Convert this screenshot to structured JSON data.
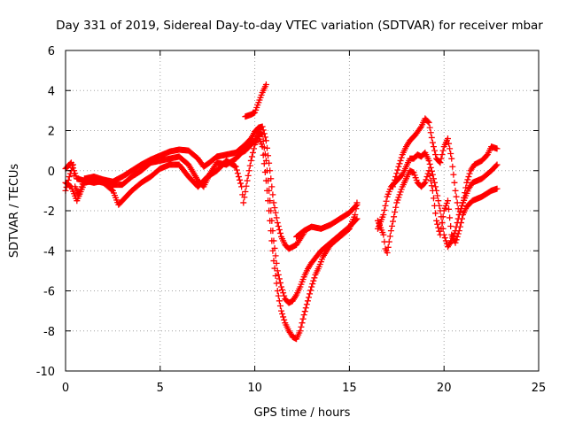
{
  "chart_data": {
    "type": "scatter",
    "title": "Day 331 of 2019, Sidereal Day-to-day VTEC variation (SDTVAR) for receiver mbar",
    "xlabel": "GPS time / hours",
    "ylabel": "SDTVAR / TECUs",
    "xlim": [
      0,
      25
    ],
    "ylim": [
      -10,
      6
    ],
    "xticks": [
      0,
      5,
      10,
      15,
      20,
      25
    ],
    "yticks": [
      -10,
      -8,
      -6,
      -4,
      -2,
      0,
      2,
      4,
      6
    ],
    "grid": true,
    "legend": "none",
    "marker": "+",
    "series_color": "#ff0000",
    "series": [
      {
        "points": [
          [
            0,
            -1.0
          ],
          [
            0.2,
            -0.3
          ],
          [
            0.4,
            0.3
          ],
          [
            0.5,
            -0.8
          ],
          [
            0.7,
            -1.2
          ],
          [
            1.0,
            -0.4
          ],
          [
            1.5,
            -0.3
          ],
          [
            2.0,
            -0.45
          ],
          [
            2.5,
            -0.55
          ],
          [
            3.0,
            -0.3
          ],
          [
            3.5,
            0.0
          ],
          [
            4.0,
            0.3
          ],
          [
            4.5,
            0.55
          ],
          [
            5.0,
            0.75
          ],
          [
            5.5,
            0.95
          ],
          [
            6.0,
            1.05
          ],
          [
            6.5,
            1.0
          ],
          [
            7.0,
            0.6
          ],
          [
            7.3,
            0.2
          ],
          [
            7.6,
            0.4
          ],
          [
            8.0,
            0.7
          ],
          [
            8.5,
            0.8
          ],
          [
            9.0,
            0.9
          ],
          [
            9.5,
            1.3
          ],
          [
            9.8,
            1.6
          ],
          [
            10.0,
            1.95
          ],
          [
            10.2,
            2.15
          ],
          [
            10.4,
            2.2
          ],
          [
            10.6,
            1.5
          ],
          [
            10.8,
            0.0
          ],
          [
            11.0,
            -1.6
          ],
          [
            11.2,
            -2.6
          ],
          [
            11.4,
            -3.3
          ],
          [
            11.6,
            -3.7
          ],
          [
            11.8,
            -3.9
          ],
          [
            12.0,
            -3.8
          ],
          [
            12.2,
            -3.7
          ],
          [
            12.4,
            -3.4
          ],
          [
            12.6,
            -3.1
          ]
        ]
      },
      {
        "points": [
          [
            0,
            0.1
          ],
          [
            0.3,
            0.4
          ],
          [
            0.6,
            -0.4
          ],
          [
            1.0,
            -0.5
          ],
          [
            1.5,
            -0.6
          ],
          [
            2.0,
            -0.5
          ],
          [
            2.5,
            -0.7
          ],
          [
            3.0,
            -0.7
          ],
          [
            3.5,
            -0.3
          ],
          [
            4.0,
            0.0
          ],
          [
            4.5,
            0.4
          ],
          [
            5.0,
            0.5
          ],
          [
            5.5,
            0.6
          ],
          [
            6.0,
            0.7
          ],
          [
            6.5,
            0.3
          ],
          [
            7.0,
            -0.5
          ],
          [
            7.3,
            -0.8
          ],
          [
            7.6,
            -0.2
          ],
          [
            8.0,
            0.4
          ],
          [
            8.5,
            0.3
          ],
          [
            9.0,
            0.6
          ],
          [
            9.3,
            0.9
          ],
          [
            9.5,
            1.0
          ],
          [
            10.0,
            1.5
          ],
          [
            10.2,
            1.9
          ],
          [
            10.4,
            1.8
          ],
          [
            10.6,
            0.5
          ],
          [
            10.8,
            -1.5
          ],
          [
            11.0,
            -3.5
          ],
          [
            11.2,
            -5.0
          ],
          [
            11.4,
            -5.8
          ],
          [
            11.6,
            -6.4
          ],
          [
            11.8,
            -6.6
          ],
          [
            12.0,
            -6.5
          ],
          [
            12.2,
            -6.2
          ],
          [
            12.4,
            -5.8
          ],
          [
            12.6,
            -5.3
          ],
          [
            12.8,
            -4.9
          ],
          [
            13.0,
            -4.6
          ],
          [
            13.5,
            -4.0
          ],
          [
            14.0,
            -3.6
          ],
          [
            14.5,
            -3.2
          ],
          [
            15.0,
            -2.8
          ],
          [
            15.4,
            -2.4
          ]
        ]
      },
      {
        "points": [
          [
            0,
            -0.6
          ],
          [
            0.3,
            -0.8
          ],
          [
            0.6,
            -1.5
          ],
          [
            1.0,
            -0.6
          ],
          [
            1.5,
            -0.5
          ],
          [
            2.0,
            -0.6
          ],
          [
            2.5,
            -1.0
          ],
          [
            2.8,
            -1.7
          ],
          [
            3.2,
            -1.3
          ],
          [
            3.5,
            -1.0
          ],
          [
            4.0,
            -0.6
          ],
          [
            4.5,
            -0.3
          ],
          [
            5.0,
            0.1
          ],
          [
            5.5,
            0.3
          ],
          [
            6.0,
            0.3
          ],
          [
            6.5,
            -0.3
          ],
          [
            7.0,
            -0.8
          ],
          [
            7.5,
            -0.3
          ],
          [
            8.0,
            0.0
          ],
          [
            8.5,
            0.5
          ],
          [
            9.0,
            0.2
          ],
          [
            9.3,
            -0.8
          ],
          [
            9.4,
            -1.6
          ],
          [
            9.6,
            -0.5
          ],
          [
            9.8,
            0.5
          ],
          [
            10.0,
            1.3
          ],
          [
            10.2,
            1.7
          ],
          [
            10.4,
            1.2
          ],
          [
            10.6,
            -0.5
          ],
          [
            10.8,
            -2.5
          ],
          [
            11.0,
            -4.5
          ],
          [
            11.2,
            -6.0
          ],
          [
            11.4,
            -7.0
          ],
          [
            11.6,
            -7.6
          ],
          [
            11.8,
            -8.0
          ],
          [
            12.0,
            -8.3
          ],
          [
            12.2,
            -8.4
          ],
          [
            12.4,
            -8.0
          ],
          [
            12.6,
            -7.2
          ],
          [
            12.8,
            -6.5
          ],
          [
            13.0,
            -5.8
          ],
          [
            13.2,
            -5.2
          ],
          [
            13.4,
            -4.8
          ],
          [
            13.6,
            -4.3
          ],
          [
            14.0,
            -3.7
          ],
          [
            14.5,
            -3.3
          ],
          [
            15.0,
            -2.9
          ],
          [
            15.3,
            -2.2
          ],
          [
            15.4,
            -1.6
          ]
        ]
      },
      {
        "points": [
          [
            9.5,
            2.7
          ],
          [
            9.8,
            2.8
          ],
          [
            10.0,
            2.9
          ],
          [
            10.2,
            3.4
          ],
          [
            10.4,
            3.9
          ],
          [
            10.5,
            4.1
          ],
          [
            10.6,
            4.3
          ]
        ]
      },
      {
        "points": [
          [
            12.2,
            -3.3
          ],
          [
            12.6,
            -3.0
          ],
          [
            13.0,
            -2.8
          ],
          [
            13.5,
            -2.9
          ],
          [
            14.0,
            -2.7
          ],
          [
            14.5,
            -2.4
          ],
          [
            15.0,
            -2.1
          ],
          [
            15.4,
            -1.7
          ]
        ]
      },
      {
        "points": [
          [
            16.5,
            -2.5
          ],
          [
            16.8,
            -3.2
          ],
          [
            16.9,
            -3.9
          ],
          [
            17.0,
            -4.1
          ],
          [
            17.2,
            -3.0
          ],
          [
            17.5,
            -1.6
          ],
          [
            17.8,
            -0.8
          ],
          [
            18.0,
            -0.4
          ],
          [
            18.2,
            0.0
          ],
          [
            18.4,
            -0.1
          ],
          [
            18.6,
            -0.6
          ],
          [
            18.8,
            -0.8
          ],
          [
            19.0,
            -0.6
          ],
          [
            19.2,
            0.0
          ],
          [
            19.4,
            -1.0
          ],
          [
            19.6,
            -2.5
          ],
          [
            19.8,
            -3.2
          ],
          [
            20.0,
            -2.0
          ],
          [
            20.2,
            -1.5
          ],
          [
            20.4,
            -3.2
          ],
          [
            20.6,
            -3.6
          ],
          [
            20.8,
            -3.0
          ],
          [
            21.0,
            -2.2
          ],
          [
            21.2,
            -1.8
          ],
          [
            21.5,
            -1.5
          ],
          [
            22.0,
            -1.3
          ],
          [
            22.5,
            -1.0
          ],
          [
            22.8,
            -0.9
          ]
        ]
      },
      {
        "points": [
          [
            16.5,
            -2.9
          ],
          [
            16.8,
            -2.2
          ],
          [
            17.0,
            -1.3
          ],
          [
            17.2,
            -0.8
          ],
          [
            17.5,
            -0.5
          ],
          [
            17.8,
            -0.2
          ],
          [
            18.0,
            0.2
          ],
          [
            18.2,
            0.6
          ],
          [
            18.4,
            0.6
          ],
          [
            18.6,
            0.8
          ],
          [
            18.8,
            0.7
          ],
          [
            19.0,
            0.9
          ],
          [
            19.2,
            0.5
          ],
          [
            19.4,
            -0.2
          ],
          [
            19.6,
            -1.0
          ],
          [
            19.8,
            -2.0
          ],
          [
            20.0,
            -3.2
          ],
          [
            20.2,
            -3.8
          ],
          [
            20.4,
            -3.5
          ],
          [
            20.6,
            -3.0
          ],
          [
            20.8,
            -2.2
          ],
          [
            21.0,
            -1.6
          ],
          [
            21.3,
            -0.9
          ],
          [
            21.5,
            -0.6
          ],
          [
            22.0,
            -0.4
          ],
          [
            22.5,
            0.0
          ],
          [
            22.8,
            0.3
          ]
        ]
      },
      {
        "points": [
          [
            17.3,
            -0.8
          ],
          [
            17.6,
            0.2
          ],
          [
            17.8,
            0.8
          ],
          [
            18.0,
            1.2
          ],
          [
            18.2,
            1.5
          ],
          [
            18.5,
            1.8
          ],
          [
            18.8,
            2.2
          ],
          [
            19.0,
            2.6
          ],
          [
            19.2,
            2.4
          ],
          [
            19.4,
            1.4
          ],
          [
            19.6,
            0.6
          ],
          [
            19.8,
            0.4
          ],
          [
            20.0,
            1.2
          ],
          [
            20.2,
            1.6
          ],
          [
            20.4,
            0.6
          ],
          [
            20.6,
            -1.0
          ],
          [
            20.8,
            -2.2
          ],
          [
            21.0,
            -1.6
          ],
          [
            21.2,
            -0.6
          ],
          [
            21.4,
            0.0
          ],
          [
            21.6,
            0.3
          ],
          [
            22.0,
            0.5
          ],
          [
            22.3,
            0.8
          ],
          [
            22.5,
            1.2
          ],
          [
            22.8,
            1.1
          ]
        ]
      }
    ]
  }
}
